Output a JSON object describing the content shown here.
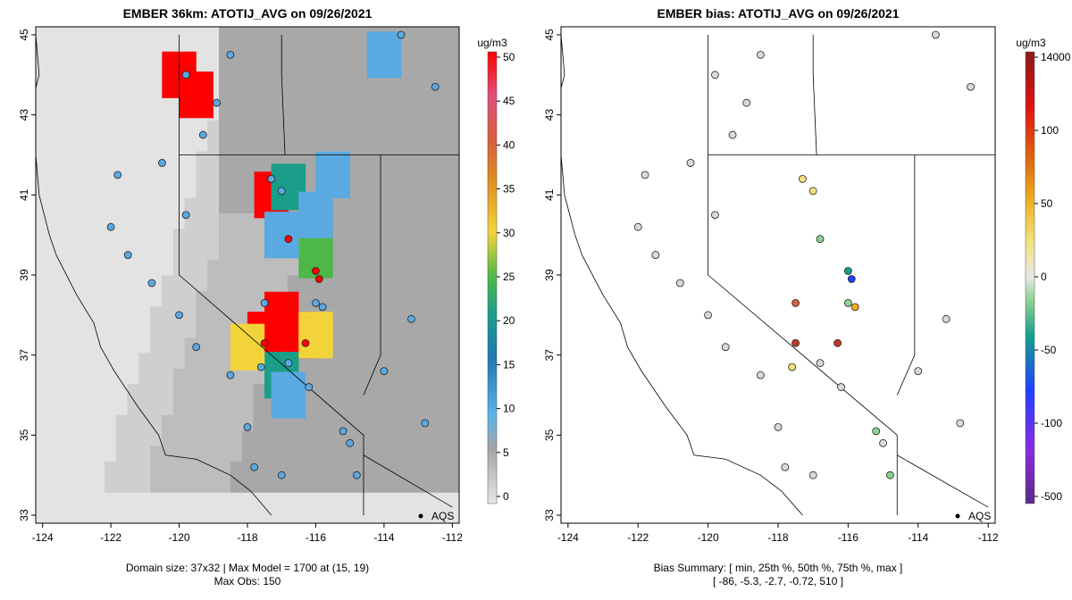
{
  "left_panel": {
    "title": "EMBER 36km: ATOTIJ_AVG on 09/26/2021",
    "caption_line1": "Domain size: 37x32 | Max Model = 1700 at (15, 19)",
    "caption_line2": "Max Obs: 150",
    "legend_unit": "ug/m3",
    "legend_ticks": [
      "0",
      "5",
      "10",
      "15",
      "20",
      "25",
      "30",
      "35",
      "40",
      "45",
      "50"
    ],
    "marker_label": "AQS"
  },
  "right_panel": {
    "title": "EMBER bias: ATOTIJ_AVG on 09/26/2021",
    "caption_line1": "Bias Summary: [ min, 25th %, 50th %, 75th %, max ]",
    "caption_line2": "[ -86,  -5.3,  -2.7,  -0.72,  510 ]",
    "legend_unit": "ug/m3",
    "legend_ticks": [
      "14000",
      "100",
      "50",
      "0",
      "-50",
      "-100",
      "-500"
    ],
    "marker_label": "AQS"
  },
  "axes": {
    "x_ticks": [
      "-124",
      "-122",
      "-120",
      "-118",
      "-116",
      "-114",
      "-112"
    ],
    "y_ticks": [
      "33",
      "35",
      "37",
      "39",
      "41",
      "43",
      "45"
    ]
  },
  "colors": {
    "low": "#d9d9d9",
    "mid_gray": "#a6a6a6",
    "blue": "#5aa9e0",
    "teal": "#1a9e8a",
    "green": "#4db848",
    "yellow": "#f2d43a",
    "orange": "#e08a1e",
    "red": "#ff0000",
    "pink": "#e0507a"
  },
  "chart_data": {
    "type": "heatmap",
    "title": "EMBER 36km: ATOTIJ_AVG on 09/26/2021",
    "xlim": [
      -124.2,
      -111.8
    ],
    "ylim": [
      32.8,
      45.2
    ],
    "grid": [
      {
        "lon": -120,
        "lat": 44,
        "level": 50
      },
      {
        "lon": -119.5,
        "lat": 43.5,
        "level": 50
      },
      {
        "lon": -117.3,
        "lat": 41,
        "level": 50
      },
      {
        "lon": -117,
        "lat": 38,
        "level": 50
      },
      {
        "lon": -116.5,
        "lat": 37.5,
        "level": 50
      },
      {
        "lon": -117.5,
        "lat": 37.5,
        "level": 50
      },
      {
        "lon": -116,
        "lat": 39.5,
        "level": 25
      },
      {
        "lon": -116.8,
        "lat": 41.2,
        "level": 20
      },
      {
        "lon": -117,
        "lat": 36.5,
        "level": 20
      },
      {
        "lon": -118,
        "lat": 37.2,
        "level": 33
      },
      {
        "lon": -116,
        "lat": 37.5,
        "level": 30
      },
      {
        "lon": -117,
        "lat": 40,
        "level": 10
      },
      {
        "lon": -116,
        "lat": 40.5,
        "level": 10
      },
      {
        "lon": -115.5,
        "lat": 41.5,
        "level": 10
      },
      {
        "lon": -114,
        "lat": 44.5,
        "level": 10
      },
      {
        "lon": -116.8,
        "lat": 36,
        "level": 15
      }
    ],
    "stations": [
      {
        "lon": -118.5,
        "lat": 44.5,
        "obs": 10,
        "bias": -2
      },
      {
        "lon": -119.8,
        "lat": 44.0,
        "obs": 10,
        "bias": -3
      },
      {
        "lon": -118.9,
        "lat": 43.3,
        "obs": 10,
        "bias": -4
      },
      {
        "lon": -119.3,
        "lat": 42.5,
        "obs": 10,
        "bias": -2
      },
      {
        "lon": -117.3,
        "lat": 41.4,
        "obs": 10,
        "bias": 15
      },
      {
        "lon": -117.0,
        "lat": 41.1,
        "obs": 10,
        "bias": 20
      },
      {
        "lon": -116.8,
        "lat": 39.9,
        "obs": 50,
        "bias": -30
      },
      {
        "lon": -116.0,
        "lat": 39.1,
        "obs": 50,
        "bias": -40
      },
      {
        "lon": -115.9,
        "lat": 38.9,
        "obs": 50,
        "bias": -100
      },
      {
        "lon": -116.0,
        "lat": 38.3,
        "obs": 10,
        "bias": -20
      },
      {
        "lon": -115.8,
        "lat": 38.2,
        "obs": 10,
        "bias": 40
      },
      {
        "lon": -117.5,
        "lat": 38.3,
        "obs": 10,
        "bias": 80
      },
      {
        "lon": -117.5,
        "lat": 37.3,
        "obs": 50,
        "bias": 100
      },
      {
        "lon": -116.3,
        "lat": 37.3,
        "obs": 50,
        "bias": 100
      },
      {
        "lon": -117.6,
        "lat": 36.7,
        "obs": 10,
        "bias": 10
      },
      {
        "lon": -116.8,
        "lat": 36.8,
        "obs": 10,
        "bias": -10
      },
      {
        "lon": -116.2,
        "lat": 36.2,
        "obs": 15,
        "bias": -5
      },
      {
        "lon": -115.2,
        "lat": 35.1,
        "obs": 15,
        "bias": -15
      },
      {
        "lon": -115.0,
        "lat": 34.8,
        "obs": 15,
        "bias": -2
      },
      {
        "lon": -114.8,
        "lat": 34.0,
        "obs": 15,
        "bias": -20
      },
      {
        "lon": -113.2,
        "lat": 37.9,
        "obs": 10,
        "bias": -2
      },
      {
        "lon": -112.5,
        "lat": 43.7,
        "obs": 10,
        "bias": -2
      },
      {
        "lon": -113.5,
        "lat": 45.0,
        "obs": 10,
        "bias": -2
      },
      {
        "lon": -122.0,
        "lat": 40.2,
        "obs": 10,
        "bias": -2
      },
      {
        "lon": -121.5,
        "lat": 39.5,
        "obs": 10,
        "bias": -3
      },
      {
        "lon": -120.8,
        "lat": 38.8,
        "obs": 10,
        "bias": -2
      },
      {
        "lon": -120.0,
        "lat": 38.0,
        "obs": 10,
        "bias": -4
      },
      {
        "lon": -119.5,
        "lat": 37.2,
        "obs": 10,
        "bias": -3
      },
      {
        "lon": -118.5,
        "lat": 36.5,
        "obs": 10,
        "bias": -2
      },
      {
        "lon": -118.0,
        "lat": 35.2,
        "obs": 10,
        "bias": -3
      },
      {
        "lon": -117.8,
        "lat": 34.2,
        "obs": 10,
        "bias": -2
      },
      {
        "lon": -117.0,
        "lat": 34.0,
        "obs": 10,
        "bias": -5
      },
      {
        "lon": -121.8,
        "lat": 41.5,
        "obs": 10,
        "bias": -2
      },
      {
        "lon": -120.5,
        "lat": 41.8,
        "obs": 10,
        "bias": -3
      },
      {
        "lon": -119.8,
        "lat": 40.5,
        "obs": 10,
        "bias": -2
      },
      {
        "lon": -114.0,
        "lat": 36.6,
        "obs": 10,
        "bias": -2
      },
      {
        "lon": -112.8,
        "lat": 35.3,
        "obs": 10,
        "bias": -2
      }
    ]
  }
}
